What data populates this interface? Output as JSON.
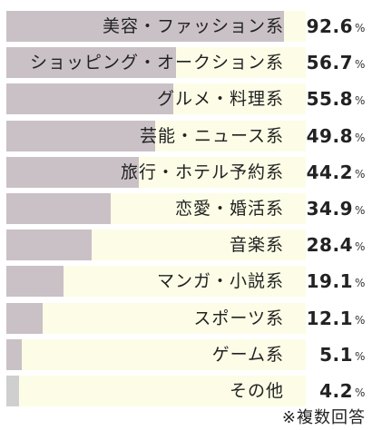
{
  "chart_data": {
    "type": "bar",
    "orientation": "horizontal",
    "categories": [
      "美容・ファッション系",
      "ショッピング・オークション系",
      "グルメ・料理系",
      "芸能・ニュース系",
      "旅行・ホテル予約系",
      "恋愛・婚活系",
      "音楽系",
      "マンガ・小説系",
      "スポーツ系",
      "ゲーム系",
      "その他"
    ],
    "values": [
      92.6,
      56.7,
      55.8,
      49.8,
      44.2,
      34.9,
      28.4,
      19.1,
      12.1,
      5.1,
      4.2
    ],
    "value_labels": [
      "92.6",
      "56.7",
      "55.8",
      "49.8",
      "44.2",
      "34.9",
      "28.4",
      "19.1",
      "12.1",
      "5.1",
      "4.2"
    ],
    "unit": "%",
    "xlim": [
      0,
      100
    ],
    "grid": false,
    "colors": {
      "bar": "#c9c1c6",
      "bar_other": "#cfcfcf",
      "track": "#fdfde7"
    }
  },
  "footnote": "※複数回答"
}
